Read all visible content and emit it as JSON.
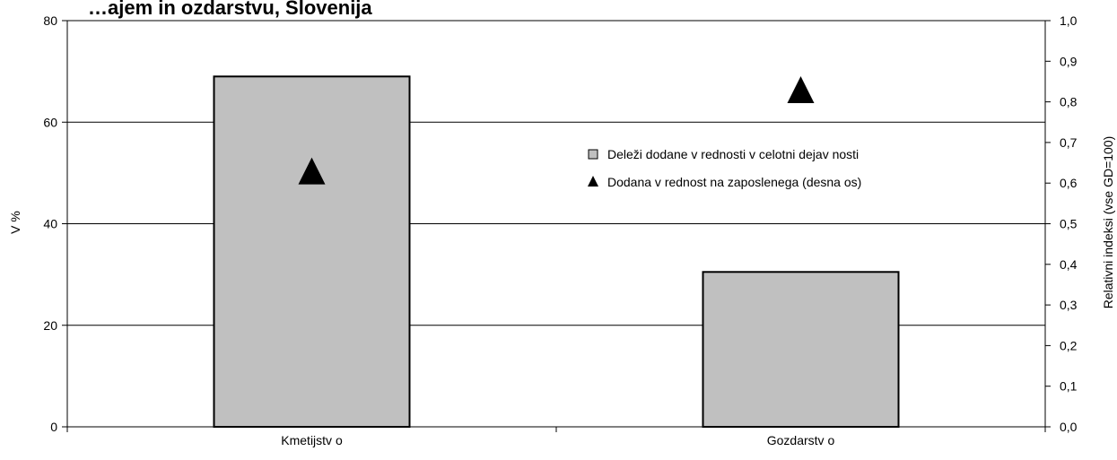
{
  "chart_data": {
    "type": "bar",
    "title": "…ajem in  ozdarstvu, Slovenija",
    "categories": [
      "Kmetijstv o",
      "Gozdarstv o"
    ],
    "series": [
      {
        "name": "Deleži dodane v rednosti v  celotni dejav nosti",
        "axis": "left",
        "marker": "square",
        "values": [
          69,
          30.5
        ]
      },
      {
        "name": "Dodana v rednost na zaposlenega (desna os)",
        "axis": "right",
        "marker": "triangle",
        "values": [
          0.63,
          0.83
        ]
      }
    ],
    "ylabel": "V %",
    "y2label": "Relativni indeksi (vse GD=100)",
    "ylim": [
      0,
      80
    ],
    "y2lim": [
      0,
      1
    ],
    "yticks": [
      "0",
      "20",
      "40",
      "60",
      "80"
    ],
    "y2ticks": [
      "0,0",
      "0,1",
      "0,2",
      "0,3",
      "0,4",
      "0,5",
      "0,6",
      "0,7",
      "0,8",
      "0,9",
      "1,0"
    ],
    "grid": true,
    "legend_position": "right-center",
    "colors": {
      "bar_fill": "#c0c0c0",
      "bar_stroke": "#000000",
      "marker": "#000000",
      "grid": "#000000"
    }
  }
}
